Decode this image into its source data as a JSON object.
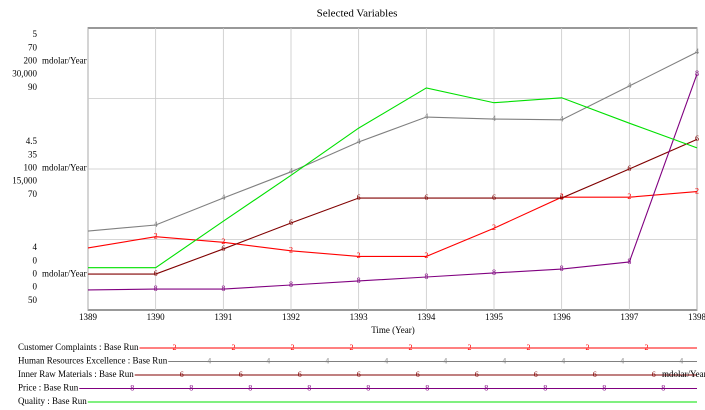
{
  "chart_data": {
    "type": "line",
    "title": "Selected Variables",
    "x_label": "Time (Year)",
    "x": [
      1389,
      1390,
      1391,
      1392,
      1393,
      1394,
      1395,
      1396,
      1397,
      1398
    ],
    "xlim": [
      1389,
      1398
    ],
    "xticks": [
      1389,
      1390,
      1391,
      1392,
      1393,
      1394,
      1395,
      1396,
      1397,
      1398
    ],
    "grid": true,
    "series": [
      {
        "name": "Customer Complaints : Base Run",
        "color": "#ff0000",
        "marker": "2",
        "values": [
          4.22,
          4.26,
          4.24,
          4.21,
          4.19,
          4.19,
          4.29,
          4.4,
          4.4,
          4.42
        ],
        "ylim": [
          4,
          5
        ],
        "yticks": [
          4,
          4.5,
          5
        ]
      },
      {
        "name": "Human Resources Excellence : Base Run",
        "color": "#808080",
        "marker": "4",
        "values": [
          19.6,
          21.1,
          27.8,
          34.3,
          41.7,
          47.9,
          47.4,
          47.2,
          55.6,
          64
        ],
        "ylim": [
          0,
          70
        ],
        "yticks": [
          0,
          35,
          70
        ]
      },
      {
        "name": "Inner Raw Materials : Base Run",
        "color": "#800000",
        "marker": "6",
        "unit": "mdolar/Year",
        "values": [
          25.5,
          25.5,
          43.3,
          61.7,
          79.4,
          79.4,
          79.4,
          79.4,
          100,
          121
        ],
        "ylim": [
          0,
          200
        ],
        "yticks": [
          0,
          100,
          200
        ]
      },
      {
        "name": "Price : Base Run",
        "color": "#800080",
        "marker": "8",
        "values": [
          2130,
          2230,
          2230,
          2660,
          3090,
          3510,
          3940,
          4360,
          5110,
          25100
        ],
        "ylim": [
          0,
          30000
        ],
        "yticks": [
          0,
          {
            "value": 15000,
            "label": "15,000"
          },
          {
            "value": 30000,
            "label": "30,000"
          }
        ]
      },
      {
        "name": "Quality : Base Run",
        "color": "#00e000",
        "values": [
          56,
          56,
          62.6,
          69.1,
          75.8,
          81.5,
          79.4,
          80.1,
          76.5,
          73
        ],
        "ylim": [
          50,
          90
        ],
        "yticks": [
          50,
          70,
          90
        ]
      }
    ]
  }
}
